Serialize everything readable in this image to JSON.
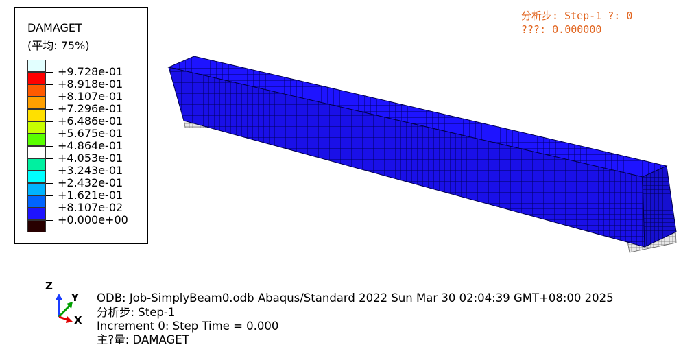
{
  "legend": {
    "title": "DAMAGET",
    "subtitle": "(平均: 75%)",
    "entries": [
      {
        "label": "+9.728e-01",
        "color": "#e2ffff"
      },
      {
        "label": "+8.918e-01",
        "color": "#ff0000"
      },
      {
        "label": "+8.107e-01",
        "color": "#ff5a00"
      },
      {
        "label": "+7.296e-01",
        "color": "#ffa000"
      },
      {
        "label": "+6.486e-01",
        "color": "#ffe000"
      },
      {
        "label": "+5.675e-01",
        "color": "#c8ff00"
      },
      {
        "label": "+4.864e-01",
        "color": "#5aff00"
      },
      {
        "label": "+4.053e-01",
        "color": "#ffffff"
      },
      {
        "label": "+3.243e-01",
        "color": "#00f0a0"
      },
      {
        "label": "+2.432e-01",
        "color": "#00ffff"
      },
      {
        "label": "+1.621e-01",
        "color": "#00b4ff"
      },
      {
        "label": "+8.107e-02",
        "color": "#0064ff"
      },
      {
        "label": "+0.000e+00",
        "color": "#1e14ff"
      },
      {
        "label": "",
        "color": "#280000"
      }
    ]
  },
  "status": {
    "line1": "分析步: Step-1   ?: 0",
    "line2": "???: 0.000000"
  },
  "info": {
    "odb": "ODB: Job-SimplyBeam0.odb    Abaqus/Standard 2022    Sun Mar 30 02:04:39 GMT+08:00 2025",
    "step": "分析步: Step-1",
    "increment": "Increment      0: Step Time =    0.000",
    "variable": "主?量: DAMAGET"
  },
  "triad": {
    "z": "Z",
    "y": "Y",
    "x": "X"
  },
  "colors": {
    "beam": "#1e14ff",
    "mesh": "#000080",
    "status": "#e1641e"
  }
}
